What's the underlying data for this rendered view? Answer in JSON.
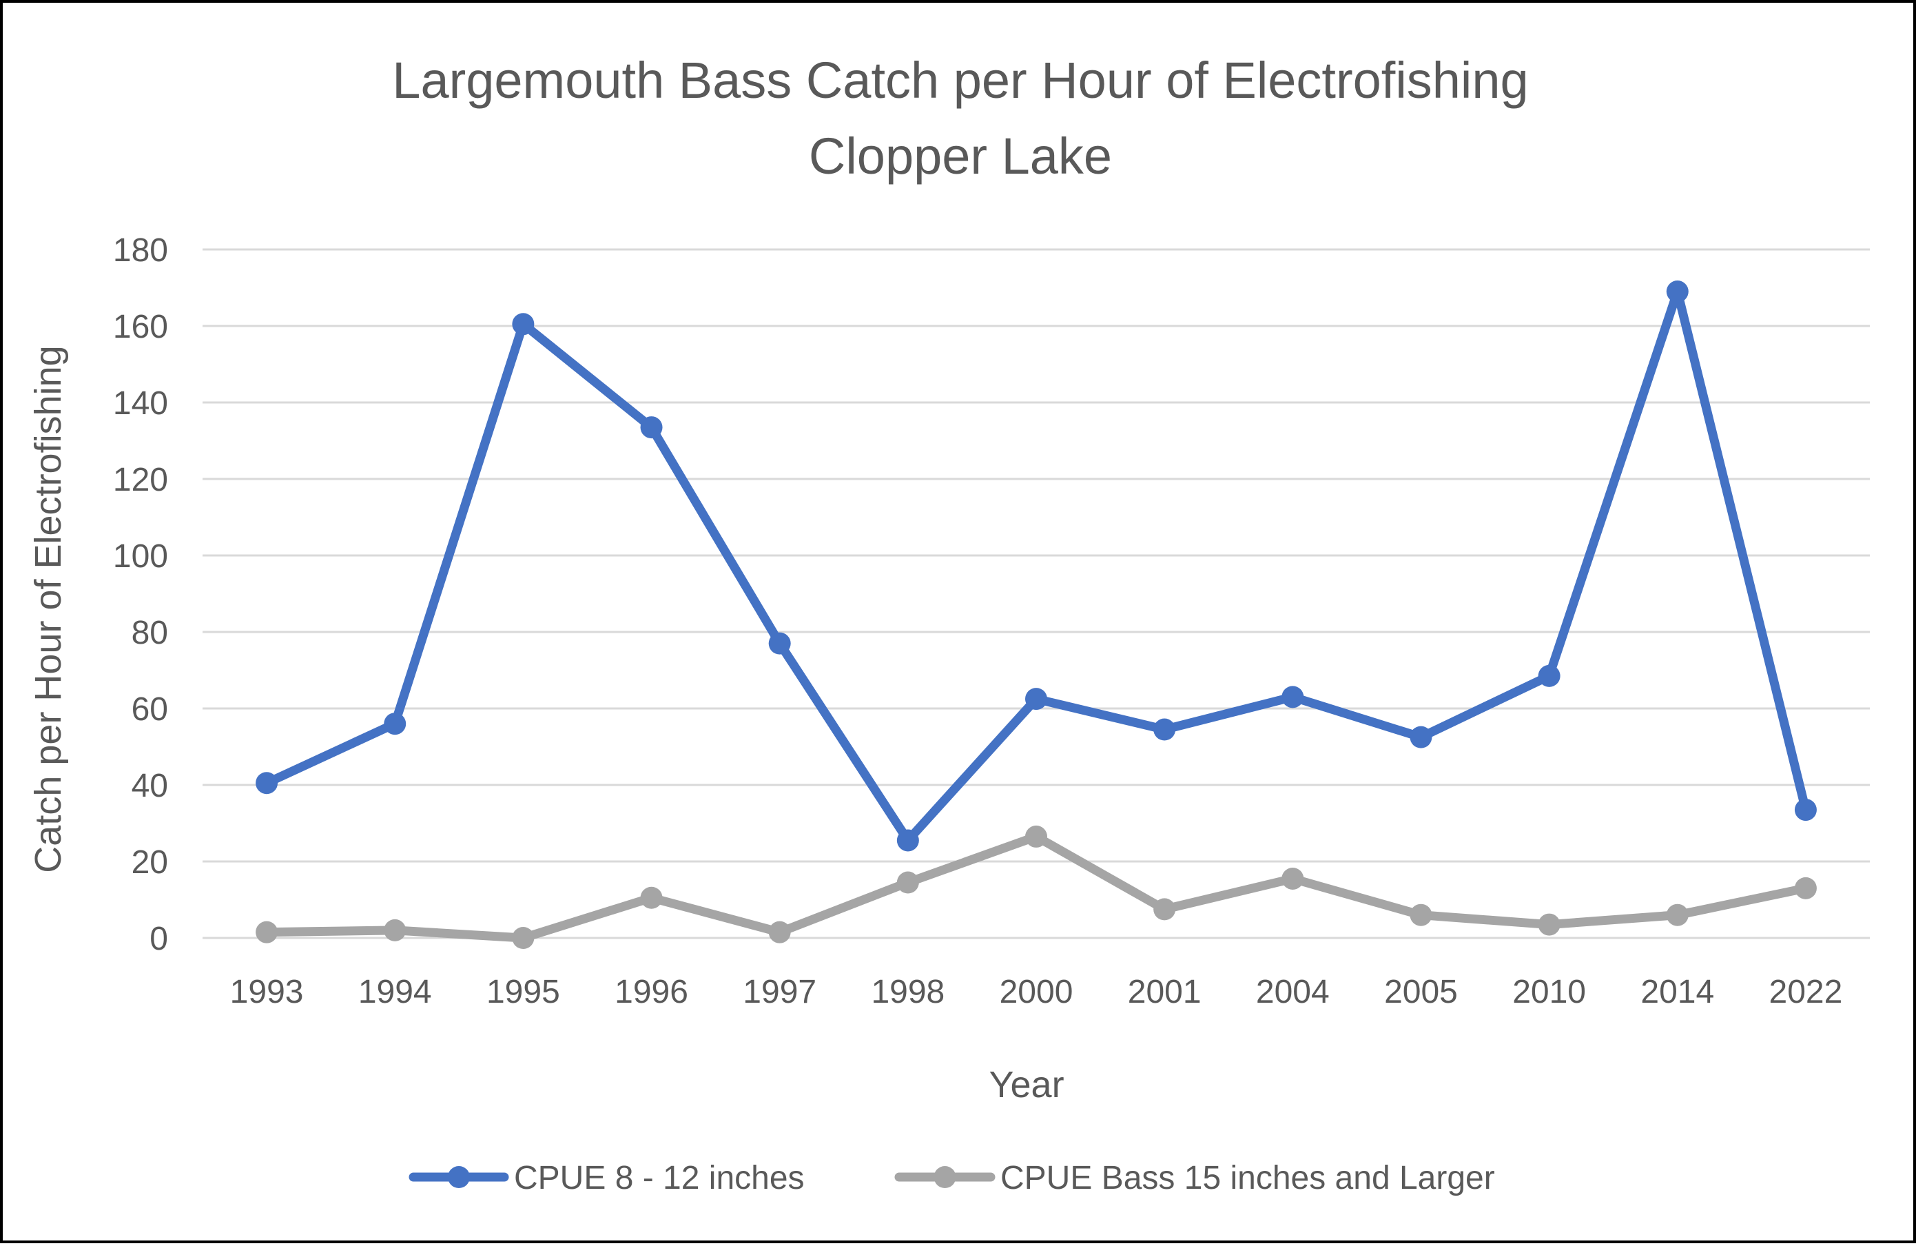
{
  "chart_data": {
    "type": "line",
    "title": [
      "Largemouth Bass Catch per Hour of Electrofishing",
      "Clopper Lake"
    ],
    "xlabel": "Year",
    "ylabel": "Catch per Hour of Electrofishing",
    "categories": [
      "1993",
      "1994",
      "1995",
      "1996",
      "1997",
      "1998",
      "2000",
      "2001",
      "2004",
      "2005",
      "2010",
      "2014",
      "2022"
    ],
    "ylim": [
      0,
      180
    ],
    "yticks": [
      "0",
      "20",
      "40",
      "60",
      "80",
      "100",
      "120",
      "140",
      "160",
      "180"
    ],
    "grid": true,
    "legend_position": "bottom",
    "series": [
      {
        "name": "CPUE 8 - 12 inches",
        "color": "#4472C4",
        "values": [
          40.5,
          56,
          160.5,
          133.5,
          77,
          25.5,
          62.5,
          54.5,
          63,
          52.5,
          68.5,
          169,
          33.5
        ]
      },
      {
        "name": "CPUE Bass 15 inches and Larger",
        "color": "#A5A5A5",
        "values": [
          1.5,
          2,
          0,
          10.5,
          1.5,
          14.5,
          26.5,
          7.5,
          15.5,
          6,
          3.5,
          6,
          13
        ]
      }
    ]
  }
}
